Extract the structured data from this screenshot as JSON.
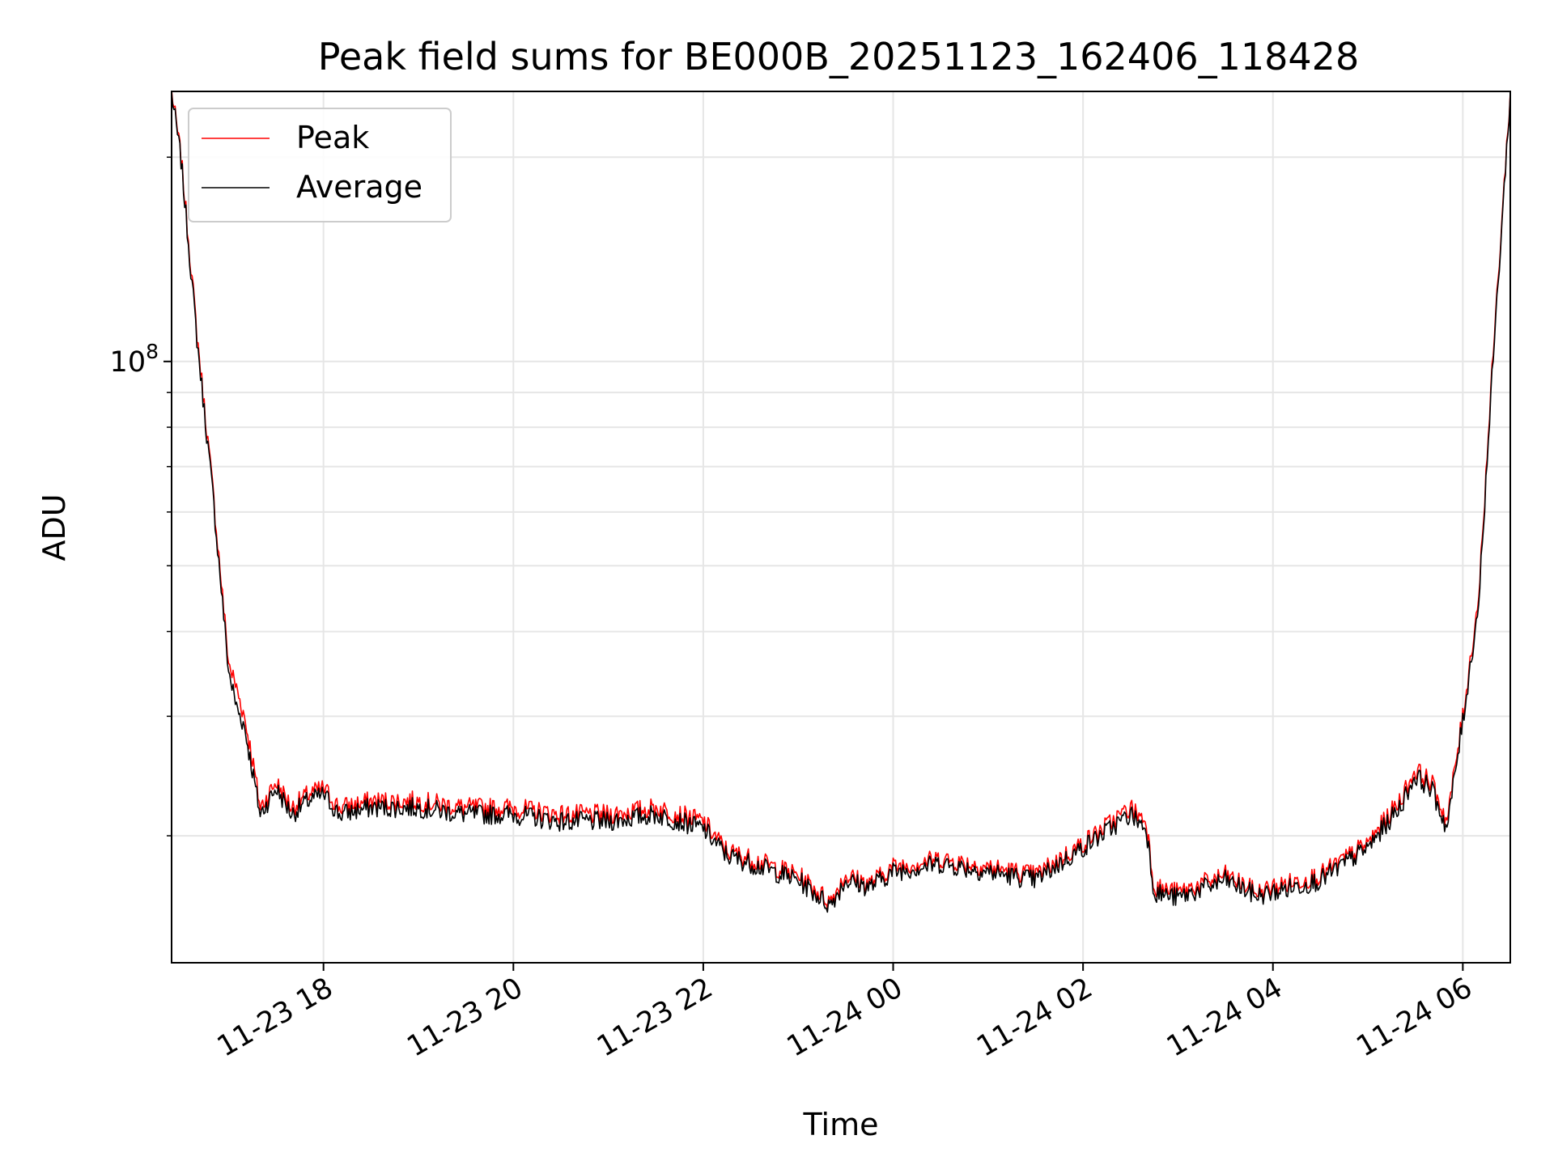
{
  "chart_data": {
    "type": "line",
    "title": "Peak field sums for BE000B_20251123_162406_118428",
    "xlabel": "Time",
    "ylabel": "ADU",
    "yscale": "log",
    "grid": true,
    "legend": {
      "placement": "top-left"
    },
    "xlim": [
      "2025-11-23 16:24",
      "2025-11-24 06:30"
    ],
    "ylim": [
      13000000,
      250000000
    ],
    "x_ticks": [
      {
        "value": "2025-11-23 18:00",
        "label": "11-23 18"
      },
      {
        "value": "2025-11-23 20:00",
        "label": "11-23 20"
      },
      {
        "value": "2025-11-23 22:00",
        "label": "11-23 22"
      },
      {
        "value": "2025-11-24 00:00",
        "label": "11-24 00"
      },
      {
        "value": "2025-11-24 02:00",
        "label": "11-24 02"
      },
      {
        "value": "2025-11-24 04:00",
        "label": "11-24 04"
      },
      {
        "value": "2025-11-24 06:00",
        "label": "11-24 06"
      }
    ],
    "y_ticks": [
      {
        "value": 100000000,
        "base": "10",
        "exp": "8"
      }
    ],
    "colors": {
      "Peak": "#ff0000",
      "Average": "#000000"
    },
    "series": [
      {
        "name": "Peak",
        "x": [
          "2025-11-23 16:24",
          "2025-11-23 16:30",
          "2025-11-23 16:40",
          "2025-11-23 16:50",
          "2025-11-23 17:00",
          "2025-11-23 17:05",
          "2025-11-23 17:10",
          "2025-11-23 17:15",
          "2025-11-23 17:20",
          "2025-11-23 17:30",
          "2025-11-23 17:40",
          "2025-11-23 17:50",
          "2025-11-23 18:00",
          "2025-11-23 18:10",
          "2025-11-23 18:30",
          "2025-11-23 19:00",
          "2025-11-23 19:30",
          "2025-11-23 20:00",
          "2025-11-23 20:30",
          "2025-11-23 21:00",
          "2025-11-23 21:30",
          "2025-11-23 22:00",
          "2025-11-23 22:15",
          "2025-11-23 22:30",
          "2025-11-23 23:00",
          "2025-11-23 23:20",
          "2025-11-23 23:30",
          "2025-11-23 23:45",
          "2025-11-24 00:00",
          "2025-11-24 00:30",
          "2025-11-24 01:00",
          "2025-11-24 01:30",
          "2025-11-24 02:00",
          "2025-11-24 02:30",
          "2025-11-24 02:40",
          "2025-11-24 02:45",
          "2025-11-24 03:00",
          "2025-11-24 03:30",
          "2025-11-24 03:50",
          "2025-11-24 04:00",
          "2025-11-24 04:30",
          "2025-11-24 05:00",
          "2025-11-24 05:20",
          "2025-11-24 05:30",
          "2025-11-24 05:40",
          "2025-11-24 05:50",
          "2025-11-24 06:00",
          "2025-11-24 06:10",
          "2025-11-24 06:20",
          "2025-11-24 06:30"
        ],
        "values": [
          250000000,
          200000000,
          110000000,
          65000000,
          36000000,
          33000000,
          30000000,
          26000000,
          22000000,
          24000000,
          22000000,
          23000000,
          23500000,
          22000000,
          22500000,
          22500000,
          22000000,
          22000000,
          21500000,
          21500000,
          22000000,
          21000000,
          19000000,
          18500000,
          17500000,
          16000000,
          17500000,
          17000000,
          18000000,
          18500000,
          18000000,
          17500000,
          19500000,
          22000000,
          21000000,
          16800000,
          16500000,
          17500000,
          16500000,
          16800000,
          17500000,
          19500000,
          22500000,
          25000000,
          24000000,
          21000000,
          30000000,
          45000000,
          110000000,
          250000000
        ]
      },
      {
        "name": "Average",
        "x": [
          "2025-11-23 16:24",
          "2025-11-23 16:30",
          "2025-11-23 16:40",
          "2025-11-23 16:50",
          "2025-11-23 17:00",
          "2025-11-23 17:05",
          "2025-11-23 17:10",
          "2025-11-23 17:15",
          "2025-11-23 17:20",
          "2025-11-23 17:30",
          "2025-11-23 17:40",
          "2025-11-23 17:50",
          "2025-11-23 18:00",
          "2025-11-23 18:10",
          "2025-11-23 18:30",
          "2025-11-23 19:00",
          "2025-11-23 19:30",
          "2025-11-23 20:00",
          "2025-11-23 20:30",
          "2025-11-23 21:00",
          "2025-11-23 21:30",
          "2025-11-23 22:00",
          "2025-11-23 22:15",
          "2025-11-23 22:30",
          "2025-11-23 23:00",
          "2025-11-23 23:20",
          "2025-11-23 23:30",
          "2025-11-23 23:45",
          "2025-11-24 00:00",
          "2025-11-24 00:30",
          "2025-11-24 01:00",
          "2025-11-24 01:30",
          "2025-11-24 02:00",
          "2025-11-24 02:30",
          "2025-11-24 02:40",
          "2025-11-24 02:45",
          "2025-11-24 03:00",
          "2025-11-24 03:30",
          "2025-11-24 03:50",
          "2025-11-24 04:00",
          "2025-11-24 04:30",
          "2025-11-24 05:00",
          "2025-11-24 05:20",
          "2025-11-24 05:30",
          "2025-11-24 05:40",
          "2025-11-24 05:50",
          "2025-11-24 06:00",
          "2025-11-24 06:10",
          "2025-11-24 06:20",
          "2025-11-24 06:30"
        ],
        "values": [
          248000000,
          198000000,
          108000000,
          64000000,
          35000000,
          31000000,
          29000000,
          25000000,
          21500000,
          23500000,
          21500000,
          22500000,
          23000000,
          21500000,
          22000000,
          22000000,
          21500000,
          21500000,
          21000000,
          21000000,
          21500000,
          20500000,
          18700000,
          18200000,
          17200000,
          15800000,
          17200000,
          16800000,
          17700000,
          18200000,
          17700000,
          17200000,
          19200000,
          21500000,
          20500000,
          16500000,
          16200000,
          17200000,
          16300000,
          16500000,
          17200000,
          19200000,
          22000000,
          24500000,
          23500000,
          20500000,
          29500000,
          44000000,
          108000000,
          248000000
        ]
      }
    ]
  }
}
